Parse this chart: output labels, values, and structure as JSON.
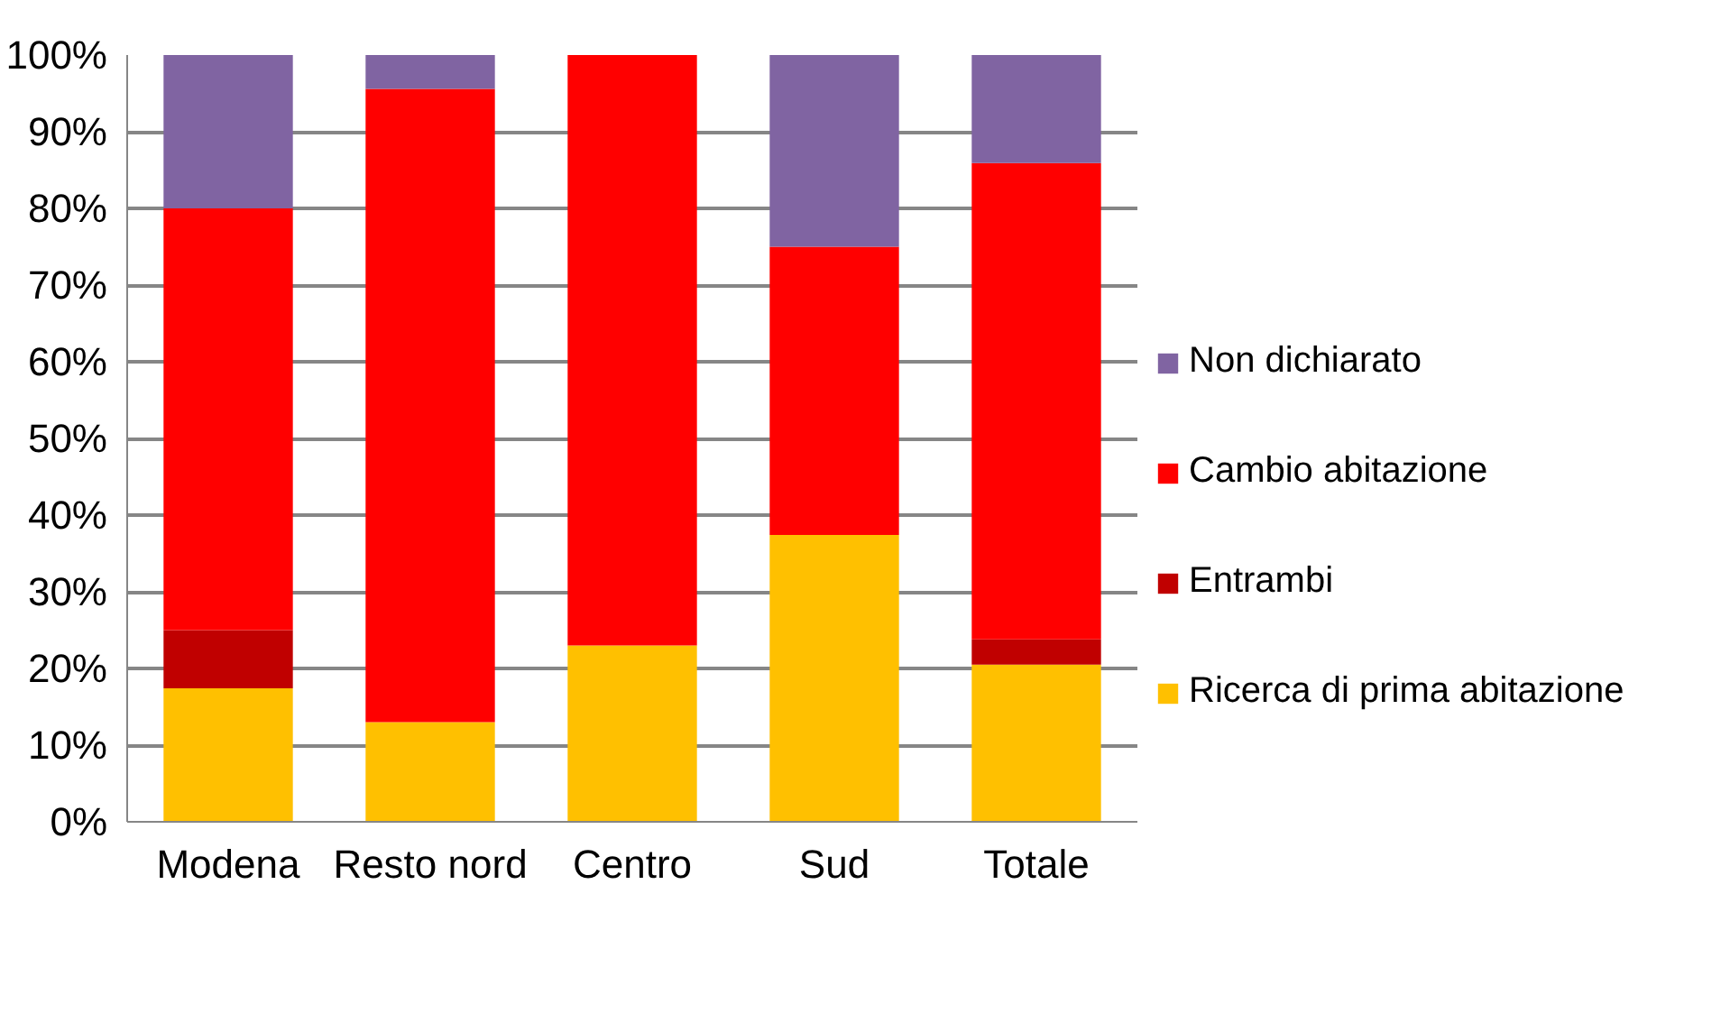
{
  "chart_data": {
    "type": "bar",
    "stacked": true,
    "categories": [
      "Modena",
      "Resto nord",
      "Centro",
      "Sud",
      "Totale"
    ],
    "series": [
      {
        "name": "Ricerca di prima abitazione",
        "color": "#ffc000",
        "values": [
          17.4,
          13.0,
          23.0,
          37.4,
          20.5
        ]
      },
      {
        "name": "Entrambi",
        "color": "#c00000",
        "values": [
          7.6,
          0,
          0,
          0,
          3.3
        ]
      },
      {
        "name": "Cambio abitazione",
        "color": "#ff0000",
        "values": [
          55.0,
          82.6,
          77.0,
          37.6,
          62.1
        ]
      },
      {
        "name": "Non dichiarato",
        "color": "#8064a2",
        "values": [
          20.0,
          4.4,
          0,
          25.0,
          14.1
        ]
      }
    ],
    "ylim": [
      0,
      100
    ],
    "yticks": [
      {
        "value": 0,
        "label": "0%"
      },
      {
        "value": 10,
        "label": "10%"
      },
      {
        "value": 20,
        "label": "20%"
      },
      {
        "value": 30,
        "label": "30%"
      },
      {
        "value": 40,
        "label": "40%"
      },
      {
        "value": 50,
        "label": "50%"
      },
      {
        "value": 60,
        "label": "60%"
      },
      {
        "value": 70,
        "label": "70%"
      },
      {
        "value": 80,
        "label": "80%"
      },
      {
        "value": 90,
        "label": "90%"
      },
      {
        "value": 100,
        "label": "100%"
      }
    ],
    "grid": "y",
    "legend": "right"
  }
}
